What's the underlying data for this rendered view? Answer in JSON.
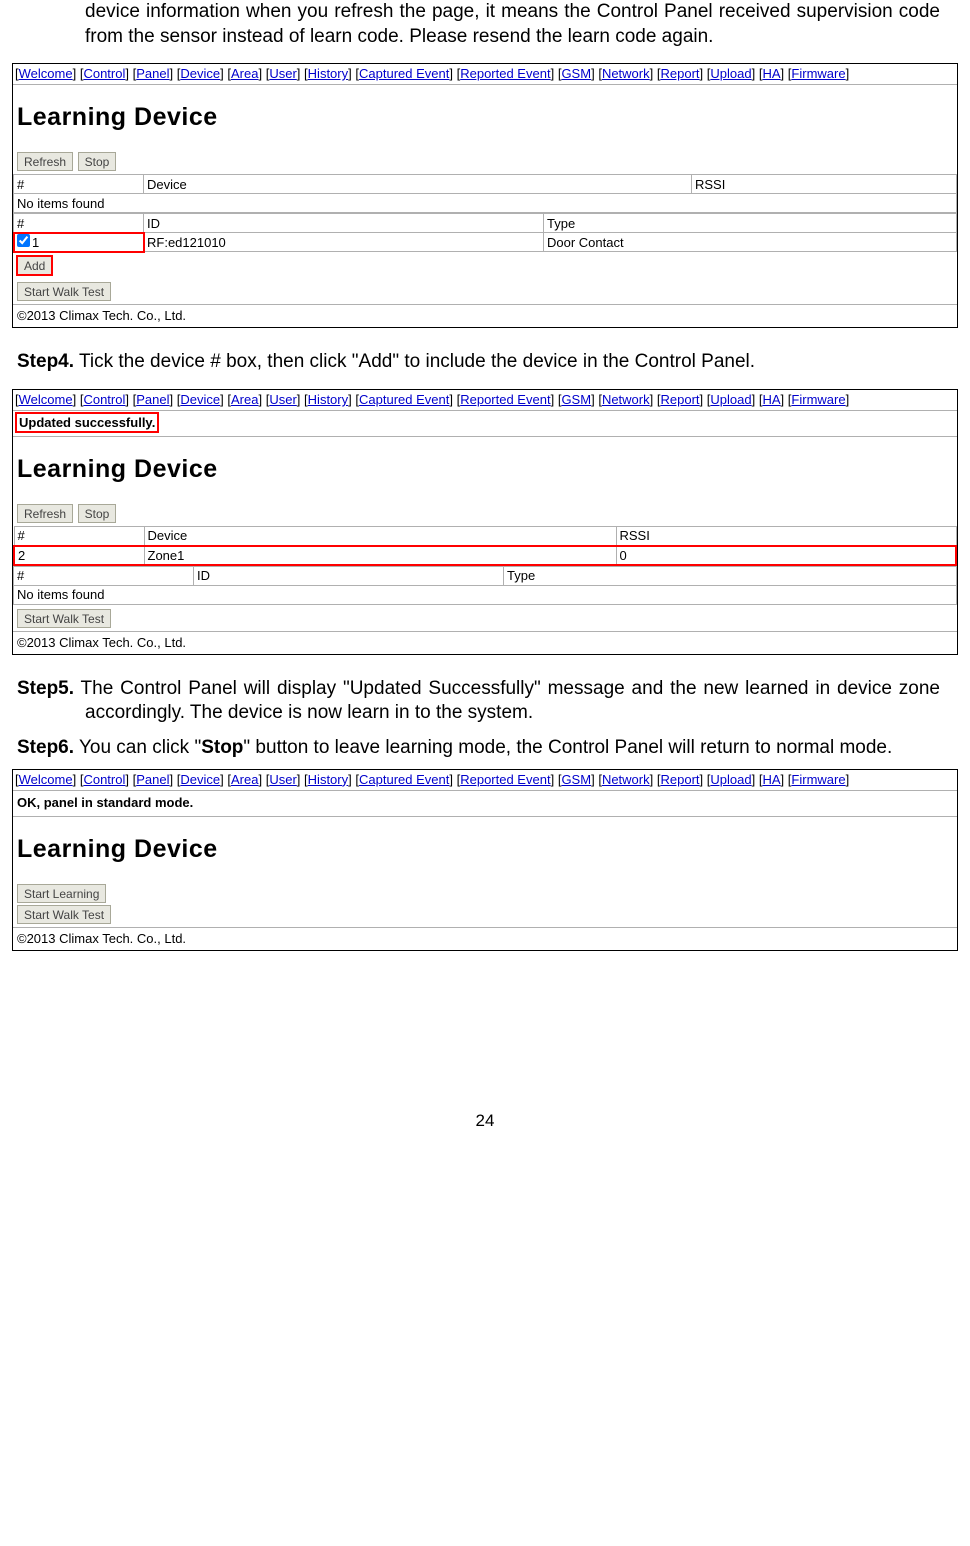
{
  "intro": "device information when you refresh the page, it means the Control Panel received supervision code from the sensor instead of learn code. Please resend the learn code again.",
  "nav": [
    "Welcome",
    "Control",
    "Panel",
    "Device",
    "Area",
    "User",
    "History",
    "Captured Event",
    "Reported Event",
    "GSM",
    "Network",
    "Report",
    "Upload",
    "HA",
    "Firmware"
  ],
  "page_title": "Learning Device",
  "btn_refresh": "Refresh",
  "btn_stop": "Stop",
  "btn_add": "Add",
  "btn_start_walk": "Start Walk Test",
  "btn_start_learning": "Start Learning",
  "th_num": "#",
  "th_device": "Device",
  "th_rssi": "RSSI",
  "th_id": "ID",
  "th_type": "Type",
  "no_items": "No items found",
  "copyright": "©2013 Climax Tech. Co., Ltd.",
  "p1": {
    "row_num": "1",
    "row_id": "RF:ed121010",
    "row_type": "Door Contact"
  },
  "step4_label": "Step4.",
  "step4_text": " Tick the device # box, then click \"Add\" to include the device in the Control Panel.",
  "p2": {
    "status": "Updated successfully.",
    "row_num": "2",
    "row_device": "Zone1",
    "row_rssi": "0"
  },
  "step5_label": "Step5.",
  "step5_text": " The Control Panel will display \"Updated Successfully\" message and the new learned in device zone accordingly. The device is now learn in to the system.",
  "step6_label": "Step6.",
  "step6_text_a": " You can click \"",
  "step6_bold": "Stop",
  "step6_text_b": "\" button to leave learning mode, the Control Panel will return to normal mode.",
  "p3": {
    "status": "OK, panel in standard mode."
  },
  "page_num": "24"
}
